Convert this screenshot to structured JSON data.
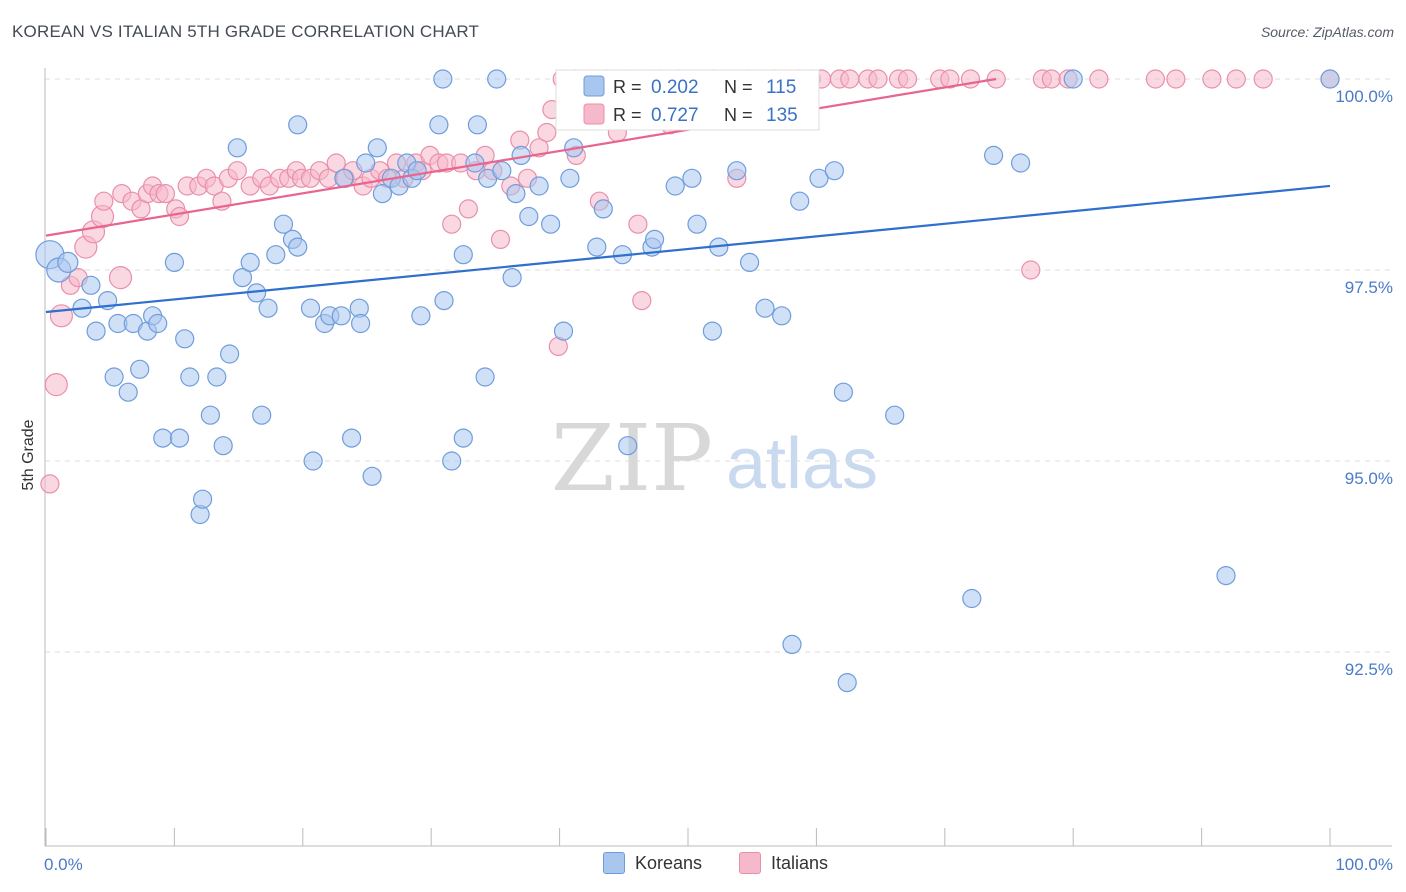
{
  "header": {
    "title": "KOREAN VS ITALIAN 5TH GRADE CORRELATION CHART",
    "source": "Source: ZipAtlas.com"
  },
  "watermark": {
    "zip": "ZIP",
    "atlas": "atlas"
  },
  "legend_top": {
    "rows": [
      {
        "r_label": "R = ",
        "r_value": "0.202",
        "n_label": "N = ",
        "n_value": "115"
      },
      {
        "r_label": "R = ",
        "r_value": "0.727",
        "n_label": "N = ",
        "n_value": "135"
      }
    ]
  },
  "legend_bottom": {
    "koreans": "Koreans",
    "italians": "Italians"
  },
  "colors": {
    "blue_fill": "#a9c6ee",
    "blue_stroke": "#6f9ddc",
    "blue_line": "#2f6fce",
    "pink_fill": "#f6b8cb",
    "pink_stroke": "#ea8fab",
    "pink_line": "#e8658f",
    "axis_text": "#4a7bc8",
    "grid": "#dddddd"
  },
  "chart_data": {
    "type": "scatter",
    "title": "KOREAN VS ITALIAN 5TH GRADE CORRELATION CHART",
    "xlabel": "",
    "ylabel": "5th Grade",
    "xlim": [
      0,
      100
    ],
    "ylim": [
      90.3,
      100.25
    ],
    "x_tick_labels": [
      "0.0%",
      "100.0%"
    ],
    "y_ticks": [
      {
        "value": 100.0,
        "label": "100.0%"
      },
      {
        "value": 97.5,
        "label": "97.5%"
      },
      {
        "value": 95.0,
        "label": "95.0%"
      },
      {
        "value": 92.5,
        "label": "92.5%"
      }
    ],
    "grid": true,
    "legend_position": "top-center",
    "series": [
      {
        "name": "Koreans",
        "R": 0.202,
        "N": 115,
        "trend": [
          [
            0,
            96.95
          ],
          [
            100,
            98.6
          ]
        ],
        "points": [
          [
            0.3,
            97.7,
            14
          ],
          [
            1,
            97.5,
            12
          ],
          [
            1.7,
            97.6,
            10
          ],
          [
            2.8,
            97.0,
            9
          ],
          [
            3.5,
            97.3,
            9
          ],
          [
            3.9,
            96.7,
            9
          ],
          [
            4.8,
            97.1,
            9
          ],
          [
            5.3,
            96.1,
            9
          ],
          [
            5.6,
            96.8,
            9
          ],
          [
            6.4,
            95.9,
            9
          ],
          [
            6.8,
            96.8,
            9
          ],
          [
            7.3,
            96.2,
            9
          ],
          [
            7.9,
            96.7,
            9
          ],
          [
            8.3,
            96.9,
            9
          ],
          [
            8.7,
            96.8,
            9
          ],
          [
            9.1,
            95.3,
            9
          ],
          [
            10.0,
            97.6,
            9
          ],
          [
            10.4,
            95.3,
            9
          ],
          [
            10.8,
            96.6,
            9
          ],
          [
            11.2,
            96.1,
            9
          ],
          [
            12.0,
            94.3,
            9
          ],
          [
            12.2,
            94.5,
            9
          ],
          [
            12.8,
            95.6,
            9
          ],
          [
            13.3,
            96.1,
            9
          ],
          [
            13.8,
            95.2,
            9
          ],
          [
            14.3,
            96.4,
            9
          ],
          [
            14.9,
            99.1,
            9
          ],
          [
            15.3,
            97.4,
            9
          ],
          [
            15.9,
            97.6,
            9
          ],
          [
            16.4,
            97.2,
            9
          ],
          [
            16.8,
            95.6,
            9
          ],
          [
            17.3,
            97.0,
            9
          ],
          [
            17.9,
            97.7,
            9
          ],
          [
            18.5,
            98.1,
            9
          ],
          [
            19.2,
            97.9,
            9
          ],
          [
            19.6,
            97.8,
            9
          ],
          [
            19.6,
            99.4,
            9
          ],
          [
            20.6,
            97.0,
            9
          ],
          [
            20.8,
            95.0,
            9
          ],
          [
            21.7,
            96.8,
            9
          ],
          [
            22.1,
            96.9,
            9
          ],
          [
            23.0,
            96.9,
            9
          ],
          [
            23.2,
            98.7,
            9
          ],
          [
            23.8,
            95.3,
            9
          ],
          [
            24.4,
            97.0,
            9
          ],
          [
            24.5,
            96.8,
            9
          ],
          [
            24.9,
            98.9,
            9
          ],
          [
            25.4,
            94.8,
            9
          ],
          [
            25.8,
            99.1,
            9
          ],
          [
            26.2,
            98.5,
            9
          ],
          [
            26.9,
            98.7,
            9
          ],
          [
            27.5,
            98.6,
            9
          ],
          [
            28.1,
            98.9,
            9
          ],
          [
            28.5,
            98.7,
            9
          ],
          [
            28.9,
            98.8,
            9
          ],
          [
            29.2,
            96.9,
            9
          ],
          [
            30.6,
            99.4,
            9
          ],
          [
            30.9,
            100.0,
            9
          ],
          [
            31.0,
            97.1,
            9
          ],
          [
            31.6,
            95.0,
            9
          ],
          [
            32.5,
            95.3,
            9
          ],
          [
            32.5,
            97.7,
            9
          ],
          [
            33.4,
            98.9,
            9
          ],
          [
            33.6,
            99.4,
            9
          ],
          [
            34.2,
            96.1,
            9
          ],
          [
            34.4,
            98.7,
            9
          ],
          [
            35.1,
            100.0,
            9
          ],
          [
            35.5,
            98.8,
            9
          ],
          [
            36.3,
            97.4,
            9
          ],
          [
            36.6,
            98.5,
            9
          ],
          [
            37.0,
            99.0,
            9
          ],
          [
            37.6,
            98.2,
            9
          ],
          [
            38.4,
            98.6,
            9
          ],
          [
            39.3,
            98.1,
            9
          ],
          [
            40.3,
            96.7,
            9
          ],
          [
            40.8,
            98.7,
            9
          ],
          [
            41.1,
            99.1,
            9
          ],
          [
            41.2,
            100.0,
            9
          ],
          [
            42.9,
            97.8,
            9
          ],
          [
            43.4,
            98.3,
            9
          ],
          [
            44.9,
            97.7,
            9
          ],
          [
            45.3,
            95.2,
            9
          ],
          [
            47.2,
            97.8,
            9
          ],
          [
            47.4,
            97.9,
            9
          ],
          [
            49.0,
            98.6,
            9
          ],
          [
            50.3,
            98.7,
            9
          ],
          [
            50.7,
            98.1,
            9
          ],
          [
            51.9,
            96.7,
            9
          ],
          [
            52.4,
            97.8,
            9
          ],
          [
            53.8,
            98.8,
            9
          ],
          [
            54.8,
            97.6,
            9
          ],
          [
            56.0,
            97.0,
            9
          ],
          [
            57.3,
            96.9,
            9
          ],
          [
            58.1,
            92.6,
            9
          ],
          [
            58.3,
            99.5,
            9
          ],
          [
            58.7,
            98.4,
            9
          ],
          [
            60.2,
            98.7,
            9
          ],
          [
            61.4,
            98.8,
            9
          ],
          [
            62.1,
            95.9,
            9
          ],
          [
            66.1,
            95.6,
            9
          ],
          [
            72.1,
            93.2,
            9
          ],
          [
            73.8,
            99.0,
            9
          ],
          [
            75.9,
            98.9,
            9
          ],
          [
            80.0,
            100.0,
            9
          ],
          [
            91.9,
            93.5,
            9
          ],
          [
            100.0,
            100.0,
            9
          ],
          [
            62.4,
            92.1,
            9
          ]
        ]
      },
      {
        "name": "Italians",
        "R": 0.727,
        "N": 135,
        "trend": [
          [
            0,
            97.95
          ],
          [
            74,
            100.0
          ]
        ],
        "points": [
          [
            0.3,
            94.7,
            9
          ],
          [
            0.8,
            96.0,
            11
          ],
          [
            1.2,
            96.9,
            11
          ],
          [
            1.9,
            97.3,
            9
          ],
          [
            2.5,
            97.4,
            9
          ],
          [
            3.1,
            97.8,
            11
          ],
          [
            3.7,
            98.0,
            11
          ],
          [
            4.4,
            98.2,
            11
          ],
          [
            4.5,
            98.4,
            9
          ],
          [
            5.8,
            97.4,
            11
          ],
          [
            5.9,
            98.5,
            9
          ],
          [
            6.7,
            98.4,
            9
          ],
          [
            7.4,
            98.3,
            9
          ],
          [
            7.9,
            98.5,
            9
          ],
          [
            8.3,
            98.6,
            9
          ],
          [
            8.8,
            98.5,
            9
          ],
          [
            9.3,
            98.5,
            9
          ],
          [
            10.1,
            98.3,
            9
          ],
          [
            10.4,
            98.2,
            9
          ],
          [
            11.0,
            98.6,
            9
          ],
          [
            11.9,
            98.6,
            9
          ],
          [
            12.5,
            98.7,
            9
          ],
          [
            13.1,
            98.6,
            9
          ],
          [
            13.7,
            98.4,
            9
          ],
          [
            14.2,
            98.7,
            9
          ],
          [
            14.9,
            98.8,
            9
          ],
          [
            15.9,
            98.6,
            9
          ],
          [
            16.8,
            98.7,
            9
          ],
          [
            17.4,
            98.6,
            9
          ],
          [
            18.2,
            98.7,
            9
          ],
          [
            18.9,
            98.7,
            9
          ],
          [
            19.5,
            98.8,
            9
          ],
          [
            19.9,
            98.7,
            9
          ],
          [
            20.6,
            98.7,
            9
          ],
          [
            21.3,
            98.8,
            9
          ],
          [
            22.0,
            98.7,
            9
          ],
          [
            22.6,
            98.9,
            9
          ],
          [
            23.3,
            98.7,
            9
          ],
          [
            23.9,
            98.8,
            9
          ],
          [
            24.7,
            98.6,
            9
          ],
          [
            25.3,
            98.7,
            9
          ],
          [
            26.0,
            98.8,
            9
          ],
          [
            26.6,
            98.7,
            9
          ],
          [
            27.3,
            98.9,
            9
          ],
          [
            27.9,
            98.7,
            9
          ],
          [
            28.8,
            98.9,
            9
          ],
          [
            29.3,
            98.8,
            9
          ],
          [
            29.9,
            99.0,
            9
          ],
          [
            30.6,
            98.9,
            9
          ],
          [
            31.2,
            98.9,
            9
          ],
          [
            31.6,
            98.1,
            9
          ],
          [
            32.3,
            98.9,
            9
          ],
          [
            32.9,
            98.3,
            9
          ],
          [
            33.5,
            98.8,
            9
          ],
          [
            34.2,
            99.0,
            9
          ],
          [
            34.8,
            98.8,
            9
          ],
          [
            35.4,
            97.9,
            9
          ],
          [
            36.2,
            98.6,
            9
          ],
          [
            36.9,
            99.2,
            9
          ],
          [
            37.5,
            98.7,
            9
          ],
          [
            38.4,
            99.1,
            9
          ],
          [
            39.0,
            99.3,
            9
          ],
          [
            39.4,
            99.6,
            9
          ],
          [
            40.2,
            100.0,
            9
          ],
          [
            41.3,
            99.0,
            9
          ],
          [
            42.5,
            100.0,
            9
          ],
          [
            43.1,
            98.4,
            9
          ],
          [
            43.7,
            100.0,
            9
          ],
          [
            44.5,
            99.3,
            9
          ],
          [
            45.2,
            100.0,
            9
          ],
          [
            46.1,
            98.1,
            9
          ],
          [
            46.4,
            97.1,
            9
          ],
          [
            47.1,
            100.0,
            9
          ],
          [
            47.8,
            100.0,
            9
          ],
          [
            48.6,
            99.4,
            9
          ],
          [
            49.3,
            100.0,
            9
          ],
          [
            50.0,
            100.0,
            9
          ],
          [
            51.2,
            99.5,
            9
          ],
          [
            52.0,
            100.0,
            9
          ],
          [
            53.8,
            98.7,
            9
          ],
          [
            54.7,
            100.0,
            9
          ],
          [
            55.5,
            100.0,
            9
          ],
          [
            56.8,
            100.0,
            9
          ],
          [
            57.7,
            100.0,
            9
          ],
          [
            58.6,
            100.0,
            9
          ],
          [
            59.6,
            100.0,
            9
          ],
          [
            60.4,
            100.0,
            9
          ],
          [
            61.8,
            100.0,
            9
          ],
          [
            62.6,
            100.0,
            9
          ],
          [
            64.0,
            100.0,
            9
          ],
          [
            64.8,
            100.0,
            9
          ],
          [
            66.4,
            100.0,
            9
          ],
          [
            67.1,
            100.0,
            9
          ],
          [
            69.6,
            100.0,
            9
          ],
          [
            70.4,
            100.0,
            9
          ],
          [
            72.0,
            100.0,
            9
          ],
          [
            74.0,
            100.0,
            9
          ],
          [
            77.6,
            100.0,
            9
          ],
          [
            78.3,
            100.0,
            9
          ],
          [
            79.6,
            100.0,
            9
          ],
          [
            82.0,
            100.0,
            9
          ],
          [
            86.4,
            100.0,
            9
          ],
          [
            88.0,
            100.0,
            9
          ],
          [
            90.8,
            100.0,
            9
          ],
          [
            92.7,
            100.0,
            9
          ],
          [
            94.8,
            100.0,
            9
          ],
          [
            100.0,
            100.0,
            9
          ],
          [
            76.7,
            97.5,
            9
          ],
          [
            39.9,
            96.5,
            9
          ]
        ]
      }
    ]
  }
}
